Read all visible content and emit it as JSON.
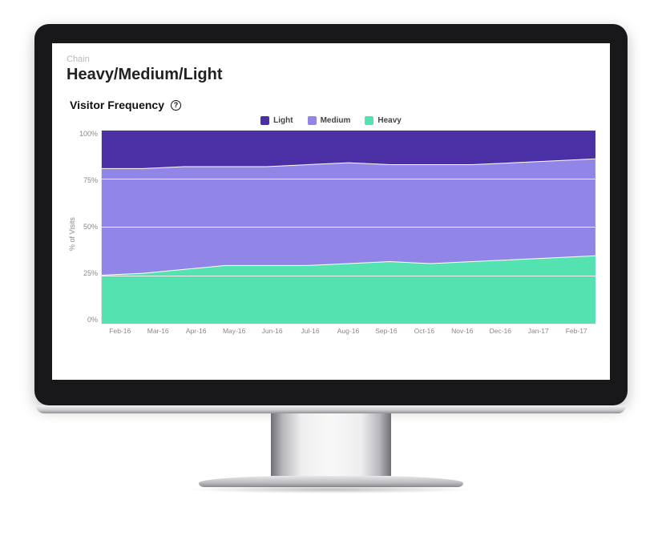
{
  "breadcrumb": "Chain",
  "page_title": "Heavy/Medium/Light",
  "chart": {
    "type": "stacked-area",
    "title": "Visitor Frequency",
    "help_glyph": "?",
    "y_axis": {
      "label": "% of Visits",
      "ylim": [
        0,
        100
      ],
      "ticks": [
        100,
        75,
        50,
        25,
        0
      ],
      "tick_suffix": "%",
      "grid_color": "#eeeeee",
      "label_color": "#888888",
      "fontsize": 9
    },
    "x_axis": {
      "categories": [
        "Feb-16",
        "Mar-16",
        "Apr-16",
        "May-16",
        "Jun-16",
        "Jul-16",
        "Aug-16",
        "Sep-16",
        "Oct-16",
        "Nov-16",
        "Dec-16",
        "Jan-17",
        "Feb-17"
      ],
      "label_color": "#888888",
      "fontsize": 8.5
    },
    "legend": {
      "items": [
        {
          "key": "light",
          "label": "Light",
          "color": "#4b2fa4"
        },
        {
          "key": "medium",
          "label": "Medium",
          "color": "#9186e8"
        },
        {
          "key": "heavy",
          "label": "Heavy",
          "color": "#55e2b1"
        }
      ],
      "fontsize": 10
    },
    "series_stack_order": [
      "heavy",
      "medium",
      "light"
    ],
    "series": {
      "heavy": [
        25,
        26,
        28,
        30,
        30,
        30,
        31,
        32,
        31,
        32,
        33,
        34,
        35
      ],
      "medium": [
        55,
        54,
        53,
        51,
        51,
        52,
        52,
        50,
        51,
        50,
        50,
        50,
        50
      ],
      "light": [
        20,
        20,
        19,
        19,
        19,
        18,
        17,
        18,
        18,
        18,
        17,
        16,
        15
      ]
    },
    "colors": {
      "heavy": "#55e2b1",
      "medium": "#9186e8",
      "light": "#4b2fa4"
    },
    "background_color": "#ffffff",
    "series_separator_color": "#ffffff",
    "series_separator_width": 1
  },
  "device": {
    "bezel_color": "#18181a",
    "screen_color": "#ffffff"
  }
}
